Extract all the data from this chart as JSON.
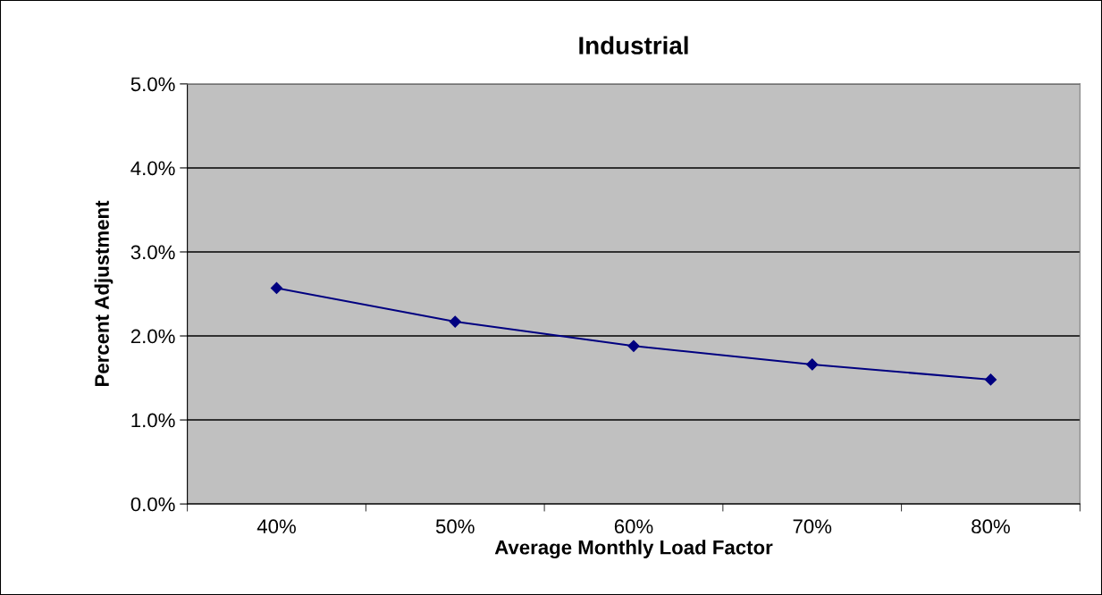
{
  "chart_data": {
    "type": "line",
    "title": "Industrial",
    "xlabel": "Average Monthly Load Factor",
    "ylabel": "Percent Adjustment",
    "categories": [
      "40%",
      "50%",
      "60%",
      "70%",
      "80%"
    ],
    "series": [
      {
        "color": "#000080",
        "values": [
          2.57,
          2.17,
          1.88,
          1.66,
          1.48
        ]
      }
    ],
    "ylim": [
      0,
      5
    ],
    "yticks": [
      {
        "value": 0,
        "label": "0.0%"
      },
      {
        "value": 1,
        "label": "1.0%"
      },
      {
        "value": 2,
        "label": "2.0%"
      },
      {
        "value": 3,
        "label": "3.0%"
      },
      {
        "value": 4,
        "label": "4.0%"
      },
      {
        "value": 5,
        "label": "5.0%"
      }
    ],
    "grid": "y",
    "marker": "diamond",
    "line_style": "solid"
  }
}
